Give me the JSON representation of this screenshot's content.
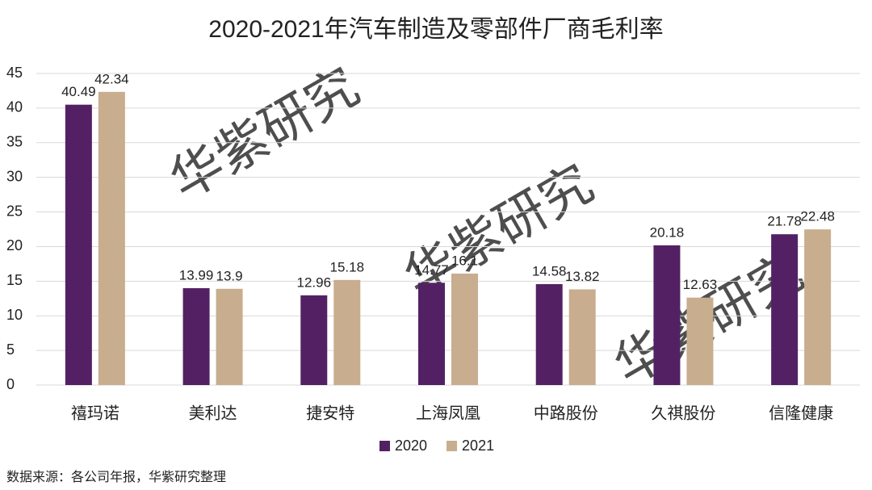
{
  "chart_data": {
    "type": "bar",
    "title": "2020-2021年汽车制造及零部件厂商毛利率",
    "categories": [
      "禧玛诺",
      "美利达",
      "捷安特",
      "上海凤凰",
      "中路股份",
      "久祺股份",
      "信隆健康"
    ],
    "series": [
      {
        "name": "2020",
        "color": "#532163",
        "values": [
          40.49,
          13.99,
          12.96,
          14.77,
          14.58,
          20.18,
          21.78
        ]
      },
      {
        "name": "2021",
        "color": "#c8ad8e",
        "values": [
          42.34,
          13.9,
          15.18,
          16.1,
          13.82,
          12.63,
          22.48
        ]
      }
    ],
    "ylim": [
      0,
      45
    ],
    "yticks": [
      0,
      5,
      10,
      15,
      20,
      25,
      30,
      35,
      40,
      45
    ],
    "grid": true,
    "legend": "bottom",
    "source": "数据来源：各公司年报，华紫研究整理",
    "watermark": "华紫研究"
  }
}
